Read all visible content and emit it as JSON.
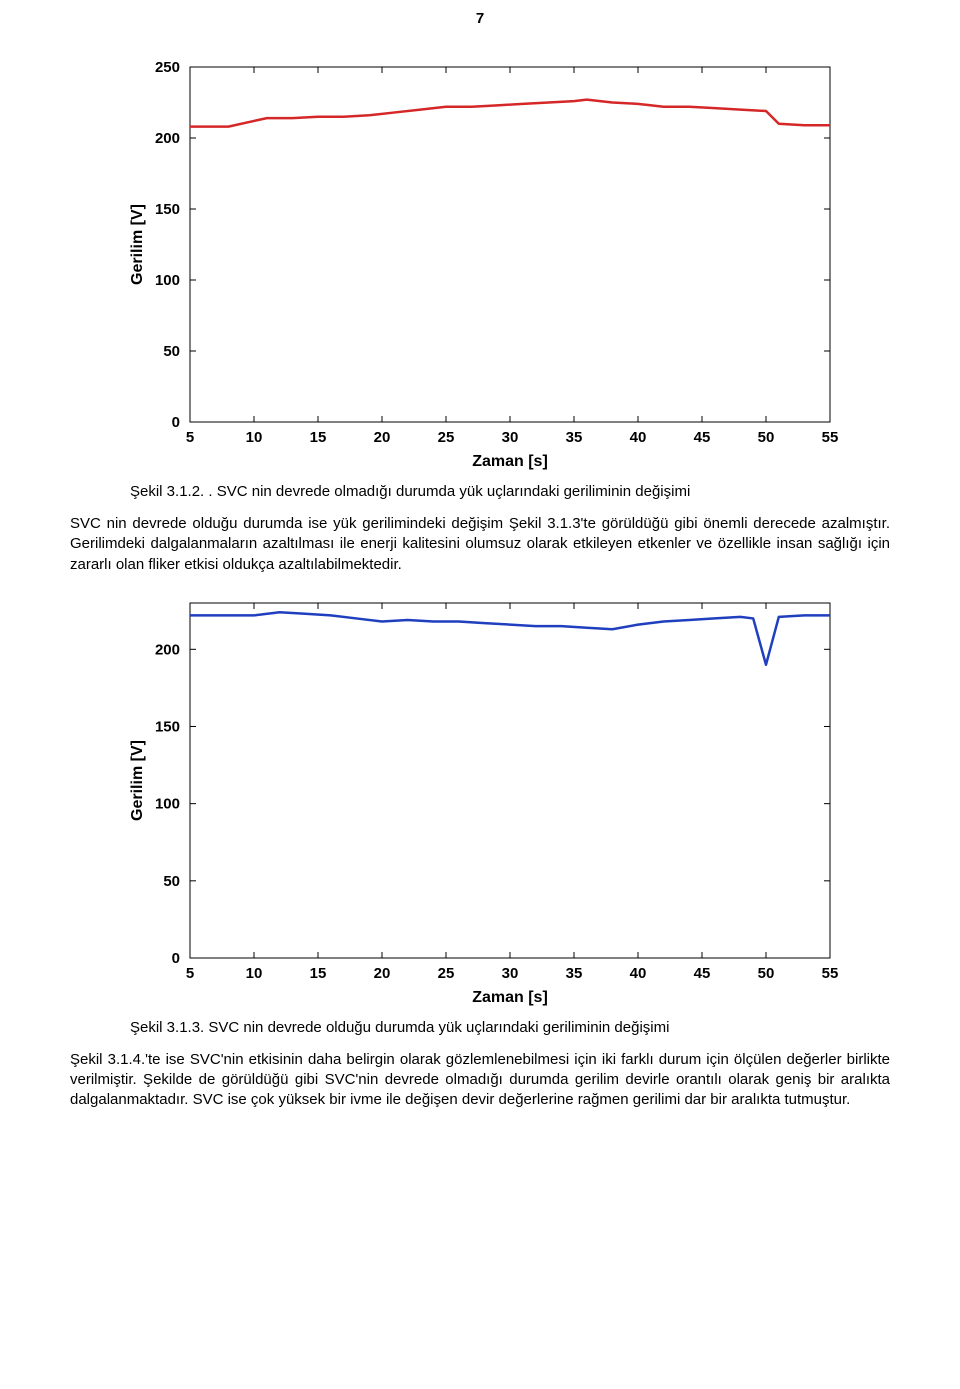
{
  "page_number": "7",
  "chart1": {
    "type": "line",
    "xlabel": "Zaman [s]",
    "ylabel": "Gerilim [V]",
    "label_fontsize": 16,
    "tick_fontsize": 15,
    "xlim": [
      5,
      55
    ],
    "ylim": [
      0,
      250
    ],
    "xticks": [
      5,
      10,
      15,
      20,
      25,
      30,
      35,
      40,
      45,
      50,
      55
    ],
    "yticks": [
      0,
      50,
      100,
      150,
      200,
      250
    ],
    "line_color": "#d62728",
    "line_width": 2.5,
    "box_color": "#000000",
    "background_color": "#ffffff",
    "x": [
      5,
      8,
      10,
      11,
      13,
      15,
      17,
      19,
      21,
      23,
      25,
      27,
      29,
      31,
      33,
      35,
      36,
      38,
      40,
      42,
      44,
      46,
      48,
      50,
      51,
      53,
      55
    ],
    "y": [
      208,
      208,
      212,
      214,
      214,
      215,
      215,
      216,
      218,
      220,
      222,
      222,
      223,
      224,
      225,
      226,
      227,
      225,
      224,
      222,
      222,
      221,
      220,
      219,
      210,
      209,
      209
    ],
    "caption": "Şekil 3.1.2. . SVC nin devrede olmadığı durumda yük uçlarındaki geriliminin değişimi"
  },
  "para1": "SVC nin devrede olduğu durumda ise yük gerilimindeki değişim Şekil 3.1.3'te görüldüğü gibi önemli derecede azalmıştır. Gerilimdeki dalgalanmaların azaltılması ile enerji kalitesini olumsuz olarak etkileyen etkenler ve özellikle insan sağlığı için zararlı olan fliker etkisi oldukça azaltılabilmektedir.",
  "chart2": {
    "type": "line",
    "xlabel": "Zaman [s]",
    "ylabel": "Gerilim [V]",
    "label_fontsize": 16,
    "tick_fontsize": 15,
    "xlim": [
      5,
      55
    ],
    "ylim": [
      0,
      230
    ],
    "xticks": [
      5,
      10,
      15,
      20,
      25,
      30,
      35,
      40,
      45,
      50,
      55
    ],
    "yticks": [
      0,
      50,
      100,
      150,
      200
    ],
    "line_color": "#1f3fbf",
    "line_width": 2.5,
    "box_color": "#000000",
    "background_color": "#ffffff",
    "x": [
      5,
      8,
      10,
      12,
      14,
      16,
      18,
      20,
      22,
      24,
      26,
      28,
      30,
      32,
      34,
      36,
      38,
      40,
      42,
      44,
      46,
      48,
      49,
      50,
      51,
      53,
      55
    ],
    "y": [
      222,
      222,
      222,
      224,
      223,
      222,
      220,
      218,
      219,
      218,
      218,
      217,
      216,
      215,
      215,
      214,
      213,
      216,
      218,
      219,
      220,
      221,
      220,
      190,
      221,
      222,
      222
    ],
    "caption": "Şekil 3.1.3. SVC nin devrede olduğu durumda yük uçlarındaki geriliminin değişimi"
  },
  "para2": "Şekil 3.1.4.'te ise SVC'nin etkisinin daha belirgin olarak gözlemlenebilmesi için iki farklı durum için ölçülen değerler birlikte verilmiştir. Şekilde de görüldüğü gibi SVC'nin devrede olmadığı durumda gerilim devirle orantılı olarak geniş bir aralıkta dalgalanmaktadır. SVC ise çok yüksek bir ivme ile değişen devir değerlerine rağmen gerilimi dar bir aralıkta tutmuştur."
}
